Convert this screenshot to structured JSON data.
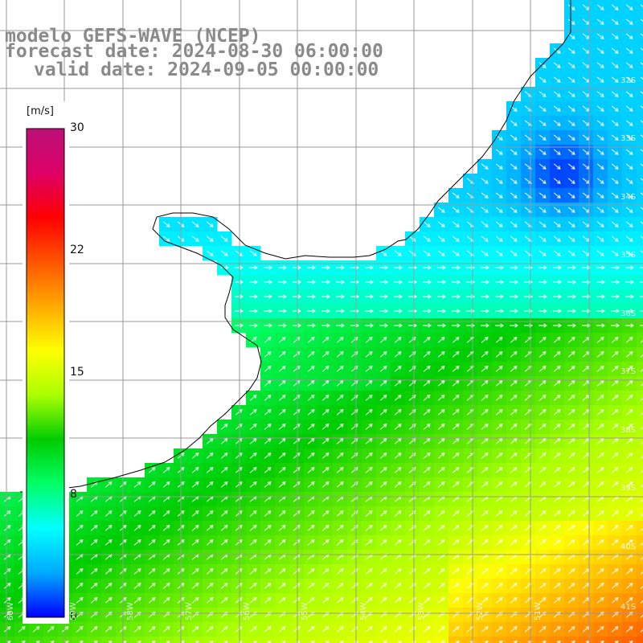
{
  "title": {
    "line1": "modelo GEFS-WAVE (NCEP)",
    "line2": "forecast date: 2024-08-30 06:00:00",
    "line3": "valid date: 2024-09-05 00:00:00"
  },
  "colorbar": {
    "unit": "[m/s]",
    "ticks": [
      "30",
      "22",
      "15",
      "8",
      "0"
    ],
    "min": 0,
    "max": 30,
    "colors": [
      "#0000ff",
      "#00aaff",
      "#00ffff",
      "#00ff66",
      "#00cc00",
      "#aaff00",
      "#ffff00",
      "#ffaa00",
      "#ff5500",
      "#ff0000",
      "#dd0066",
      "#bb1177"
    ]
  },
  "grid": {
    "lat_labels": [
      "32S",
      "33S",
      "34S",
      "35S",
      "36S",
      "37S",
      "38S",
      "39S",
      "40S",
      "41S"
    ],
    "lon_labels": [
      "60W",
      "59W",
      "58W",
      "57W",
      "56W",
      "55W",
      "54W",
      "53W",
      "52W",
      "51W"
    ]
  },
  "map": {
    "land_color": "#ffffff",
    "coast_color": "#000000",
    "vector_color": "#ffffff"
  }
}
